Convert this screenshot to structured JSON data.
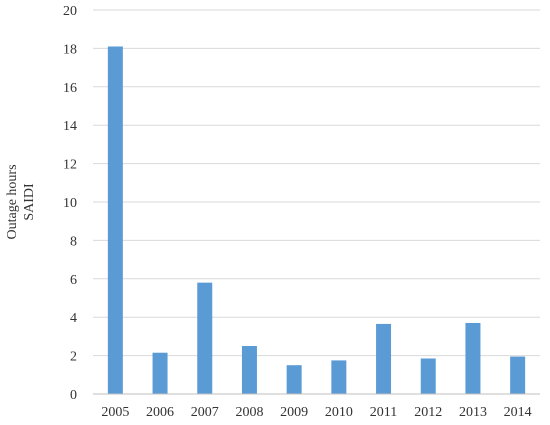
{
  "chart_data": {
    "type": "bar",
    "categories": [
      "2005",
      "2006",
      "2007",
      "2008",
      "2009",
      "2010",
      "2011",
      "2012",
      "2013",
      "2014"
    ],
    "series": [
      {
        "values": [
          18.1,
          2.15,
          5.8,
          2.5,
          1.5,
          1.75,
          3.65,
          1.85,
          3.7,
          1.95
        ],
        "color": "#5b9bd5"
      }
    ],
    "ylabel": [
      "Outage hours",
      "SAIDI"
    ],
    "xlabel": "",
    "ylim": [
      0,
      20
    ],
    "yticks": [
      0,
      2,
      4,
      6,
      8,
      10,
      12,
      14,
      16,
      18,
      20
    ],
    "grid": true,
    "legend": "none"
  }
}
